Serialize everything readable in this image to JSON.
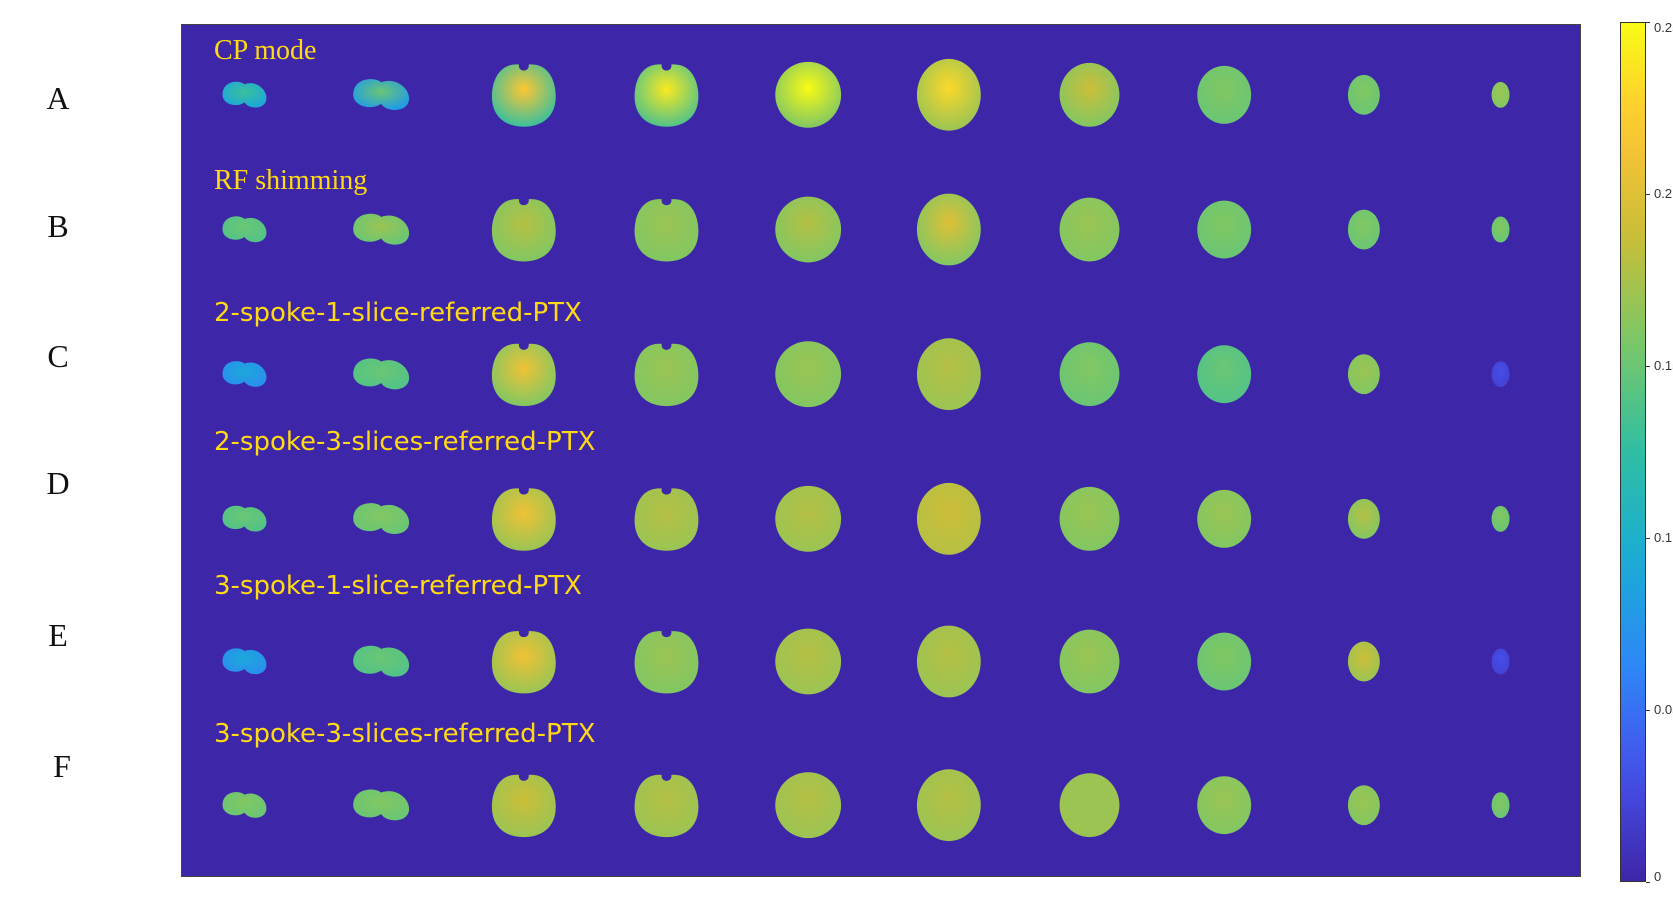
{
  "row_letters": [
    "A",
    "B",
    "C",
    "D",
    "E",
    "F"
  ],
  "rows": [
    {
      "label": "CP mode",
      "style": "serif",
      "slices": [
        {
          "v": 0.09,
          "hot": 0.13
        },
        {
          "v": 0.08,
          "hot": 0.15
        },
        {
          "v": 0.13,
          "hot": 0.22
        },
        {
          "v": 0.14,
          "hot": 0.24
        },
        {
          "v": 0.16,
          "hot": 0.25
        },
        {
          "v": 0.17,
          "hot": 0.23
        },
        {
          "v": 0.16,
          "hot": 0.19
        },
        {
          "v": 0.15,
          "hot": 0.16
        },
        {
          "v": 0.15,
          "hot": 0.16
        },
        {
          "v": 0.16,
          "hot": 0.17
        }
      ]
    },
    {
      "label": "RF shimming",
      "style": "serif",
      "slices": [
        {
          "v": 0.14,
          "hot": 0.15
        },
        {
          "v": 0.15,
          "hot": 0.17
        },
        {
          "v": 0.16,
          "hot": 0.18
        },
        {
          "v": 0.16,
          "hot": 0.17
        },
        {
          "v": 0.16,
          "hot": 0.18
        },
        {
          "v": 0.16,
          "hot": 0.2
        },
        {
          "v": 0.16,
          "hot": 0.17
        },
        {
          "v": 0.15,
          "hot": 0.16
        },
        {
          "v": 0.15,
          "hot": 0.16
        },
        {
          "v": 0.15,
          "hot": 0.16
        }
      ]
    },
    {
      "label": "2-spoke-1-slice-referred-PTX",
      "style": "sans",
      "slices": [
        {
          "v": 0.07,
          "hot": 0.09
        },
        {
          "v": 0.14,
          "hot": 0.15
        },
        {
          "v": 0.16,
          "hot": 0.21
        },
        {
          "v": 0.16,
          "hot": 0.17
        },
        {
          "v": 0.16,
          "hot": 0.17
        },
        {
          "v": 0.17,
          "hot": 0.18
        },
        {
          "v": 0.15,
          "hot": 0.16
        },
        {
          "v": 0.14,
          "hot": 0.15
        },
        {
          "v": 0.16,
          "hot": 0.17
        },
        {
          "v": 0.02,
          "hot": 0.03
        }
      ]
    },
    {
      "label": "2-spoke-3-slices-referred-PTX",
      "style": "sans",
      "slices": [
        {
          "v": 0.14,
          "hot": 0.15
        },
        {
          "v": 0.15,
          "hot": 0.16
        },
        {
          "v": 0.17,
          "hot": 0.21
        },
        {
          "v": 0.17,
          "hot": 0.18
        },
        {
          "v": 0.17,
          "hot": 0.18
        },
        {
          "v": 0.18,
          "hot": 0.19
        },
        {
          "v": 0.16,
          "hot": 0.17
        },
        {
          "v": 0.16,
          "hot": 0.17
        },
        {
          "v": 0.16,
          "hot": 0.18
        },
        {
          "v": 0.15,
          "hot": 0.16
        }
      ]
    },
    {
      "label": "3-spoke-1-slice-referred-PTX",
      "style": "sans",
      "slices": [
        {
          "v": 0.07,
          "hot": 0.09
        },
        {
          "v": 0.14,
          "hot": 0.15
        },
        {
          "v": 0.17,
          "hot": 0.21
        },
        {
          "v": 0.16,
          "hot": 0.17
        },
        {
          "v": 0.17,
          "hot": 0.18
        },
        {
          "v": 0.17,
          "hot": 0.18
        },
        {
          "v": 0.16,
          "hot": 0.17
        },
        {
          "v": 0.15,
          "hot": 0.16
        },
        {
          "v": 0.17,
          "hot": 0.19
        },
        {
          "v": 0.02,
          "hot": 0.03
        }
      ]
    },
    {
      "label": "3-spoke-3-slices-referred-PTX",
      "style": "sans",
      "slices": [
        {
          "v": 0.15,
          "hot": 0.16
        },
        {
          "v": 0.15,
          "hot": 0.16
        },
        {
          "v": 0.17,
          "hot": 0.19
        },
        {
          "v": 0.17,
          "hot": 0.18
        },
        {
          "v": 0.17,
          "hot": 0.18
        },
        {
          "v": 0.17,
          "hot": 0.18
        },
        {
          "v": 0.17,
          "hot": 0.17
        },
        {
          "v": 0.16,
          "hot": 0.17
        },
        {
          "v": 0.16,
          "hot": 0.17
        },
        {
          "v": 0.15,
          "hot": 0.16
        }
      ]
    }
  ],
  "colorbar": {
    "min": 0,
    "max": 0.25,
    "ticks": [
      "0.25",
      "0.2",
      "0.15",
      "0.1",
      "0.05",
      "0"
    ],
    "colormap": "parula",
    "background_color": "#3e26a8"
  }
}
